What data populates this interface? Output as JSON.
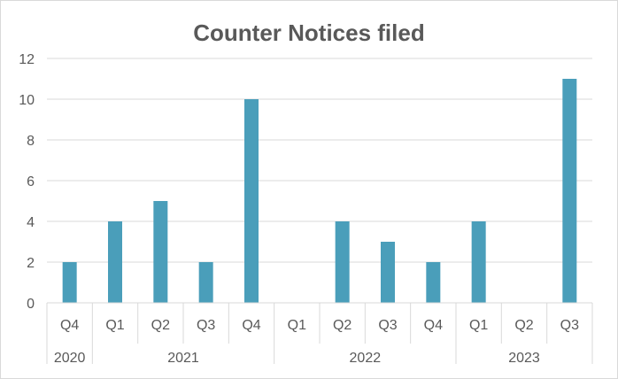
{
  "chart_data": {
    "type": "bar",
    "title": "Counter Notices filed",
    "xlabel": "",
    "ylabel": "",
    "ylim": [
      0,
      12
    ],
    "yticks": [
      0,
      2,
      4,
      6,
      8,
      10,
      12
    ],
    "categories": [
      {
        "quarter": "Q4",
        "year": "2020"
      },
      {
        "quarter": "Q1",
        "year": "2021"
      },
      {
        "quarter": "Q2",
        "year": "2021"
      },
      {
        "quarter": "Q3",
        "year": "2021"
      },
      {
        "quarter": "Q4",
        "year": "2021"
      },
      {
        "quarter": "Q1",
        "year": "2022"
      },
      {
        "quarter": "Q2",
        "year": "2022"
      },
      {
        "quarter": "Q3",
        "year": "2022"
      },
      {
        "quarter": "Q4",
        "year": "2022"
      },
      {
        "quarter": "Q1",
        "year": "2023"
      },
      {
        "quarter": "Q2",
        "year": "2023"
      },
      {
        "quarter": "Q3",
        "year": "2023"
      }
    ],
    "year_groups": [
      "2020",
      "2021",
      "2022",
      "2023"
    ],
    "values": [
      2,
      4,
      5,
      2,
      10,
      0,
      4,
      3,
      2,
      4,
      0,
      11
    ],
    "bar_color": "#4A9EBA",
    "grid": true,
    "legend": "none"
  }
}
